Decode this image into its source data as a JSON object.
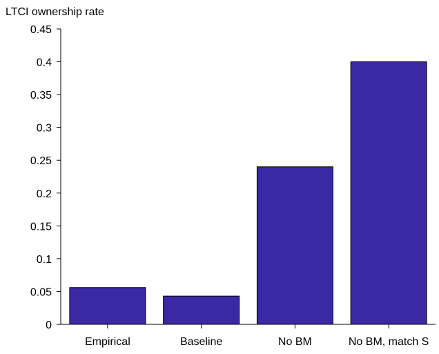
{
  "chart_data": {
    "type": "bar",
    "title": "",
    "xlabel": "",
    "ylabel": "LTCI ownership rate",
    "categories": [
      "Empirical",
      "Baseline",
      "No BM",
      "No BM, match S"
    ],
    "values": [
      0.056,
      0.043,
      0.24,
      0.4
    ],
    "ylim": [
      0,
      0.45
    ],
    "yticks": [
      0,
      0.05,
      0.1,
      0.15,
      0.2,
      0.25,
      0.3,
      0.35,
      0.4,
      0.45
    ],
    "ytick_labels": [
      "0",
      "0.05",
      "0.1",
      "0.15",
      "0.2",
      "0.25",
      "0.3",
      "0.35",
      "0.4",
      "0.45"
    ],
    "bar_color": "#3a28a4",
    "bar_edge_color": "#000000",
    "grid": false,
    "legend": "none"
  }
}
